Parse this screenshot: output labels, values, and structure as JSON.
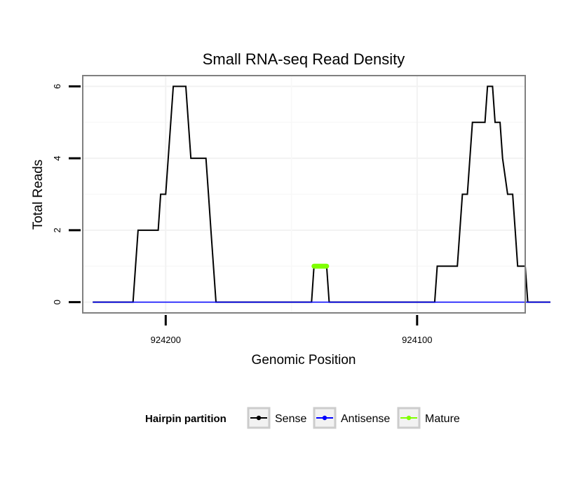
{
  "chart_data": {
    "type": "line",
    "title": "Small RNA-seq Read Density",
    "xlabel": "Genomic Position",
    "ylabel": "Total Reads",
    "xlim": [
      924233,
      924057
    ],
    "x_reversed": true,
    "ylim": [
      -0.3,
      6.3
    ],
    "yticks": [
      0,
      2,
      4,
      6
    ],
    "ytick_labels": [
      "0",
      "2",
      "4",
      "6"
    ],
    "xticks": [
      924200,
      924100
    ],
    "xtick_labels": [
      "924200",
      "924100"
    ],
    "grid": true,
    "legend": {
      "title": "Hairpin partition",
      "position": "bottom",
      "entries": [
        {
          "label": "Sense",
          "color": "#000000"
        },
        {
          "label": "Antisense",
          "color": "#0000ff"
        },
        {
          "label": "Mature",
          "color": "#7fff00"
        }
      ]
    },
    "series": [
      {
        "name": "Sense",
        "color": "#000000",
        "points": [
          [
            924229,
            0
          ],
          [
            924213,
            0
          ],
          [
            924212,
            1
          ],
          [
            924211,
            2
          ],
          [
            924203,
            2
          ],
          [
            924202,
            3
          ],
          [
            924200,
            3
          ],
          [
            924199,
            4
          ],
          [
            924198,
            5
          ],
          [
            924197,
            6
          ],
          [
            924192,
            6
          ],
          [
            924191,
            5
          ],
          [
            924190,
            4
          ],
          [
            924184,
            4
          ],
          [
            924183,
            3
          ],
          [
            924182,
            2
          ],
          [
            924181,
            1
          ],
          [
            924180,
            0
          ],
          [
            924142,
            0
          ],
          [
            924141,
            1
          ],
          [
            924136,
            1
          ],
          [
            924135,
            0
          ],
          [
            924093,
            0
          ],
          [
            924092,
            1
          ],
          [
            924084,
            1
          ],
          [
            924083,
            2
          ],
          [
            924082,
            3
          ],
          [
            924080,
            3
          ],
          [
            924079,
            4
          ],
          [
            924078,
            5
          ],
          [
            924073,
            5
          ],
          [
            924072,
            6
          ],
          [
            924070,
            6
          ],
          [
            924069,
            5
          ],
          [
            924067,
            5
          ],
          [
            924066,
            4
          ],
          [
            924064,
            3
          ],
          [
            924062,
            3
          ],
          [
            924061,
            2
          ],
          [
            924060,
            1
          ],
          [
            924057,
            1
          ],
          [
            924056,
            0
          ],
          [
            924047,
            0
          ]
        ]
      },
      {
        "name": "Antisense",
        "color": "#0000ff",
        "points": [
          [
            924229,
            0
          ],
          [
            924047,
            0
          ]
        ]
      },
      {
        "name": "Mature",
        "color": "#7fff00",
        "points": [
          [
            924141,
            1
          ],
          [
            924136,
            1
          ]
        ]
      }
    ]
  }
}
